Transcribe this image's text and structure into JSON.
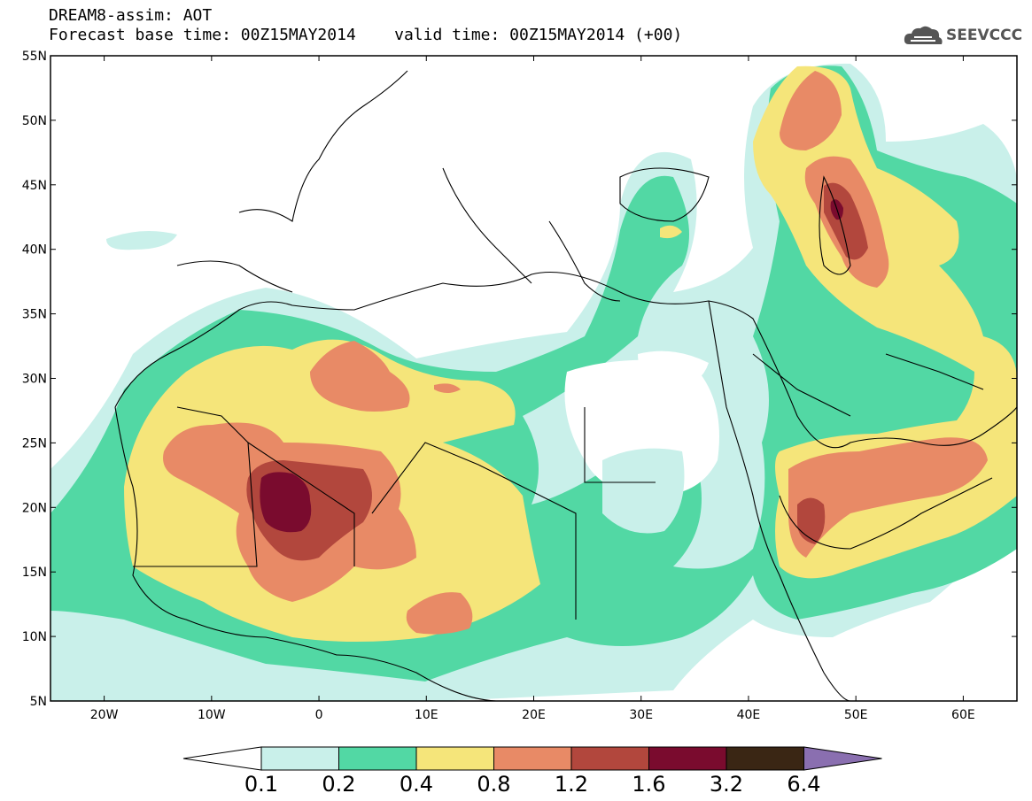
{
  "header": {
    "line1": "DREAM8-assim: AOT",
    "line2": "Forecast base time: 00Z15MAY2014    valid time: 00Z15MAY2014 (+00)"
  },
  "logo": {
    "text": "SEEVCCC",
    "icon": "cloud-icon"
  },
  "map": {
    "lon_range": [
      -25,
      65
    ],
    "lat_range": [
      5,
      55
    ],
    "lat_ticks": [
      "55N",
      "50N",
      "45N",
      "40N",
      "35N",
      "30N",
      "25N",
      "20N",
      "15N",
      "10N",
      "5N"
    ],
    "lat_tick_values": [
      55,
      50,
      45,
      40,
      35,
      30,
      25,
      20,
      15,
      10,
      5
    ],
    "lon_ticks": [
      "20W",
      "10W",
      "0",
      "10E",
      "20E",
      "30E",
      "40E",
      "50E",
      "60E"
    ],
    "lon_tick_values": [
      -20,
      -10,
      0,
      10,
      20,
      30,
      40,
      50,
      60
    ]
  },
  "colorbar": {
    "labels": [
      "0.1",
      "0.2",
      "0.4",
      "0.8",
      "1.2",
      "1.6",
      "3.2",
      "6.4"
    ],
    "colors": [
      "#ffffff",
      "#c9f0ea",
      "#52d8a4",
      "#f5e57a",
      "#e88a66",
      "#b2473d",
      "#7a0b2e",
      "#3a2614",
      "#8a6fb0"
    ]
  }
}
